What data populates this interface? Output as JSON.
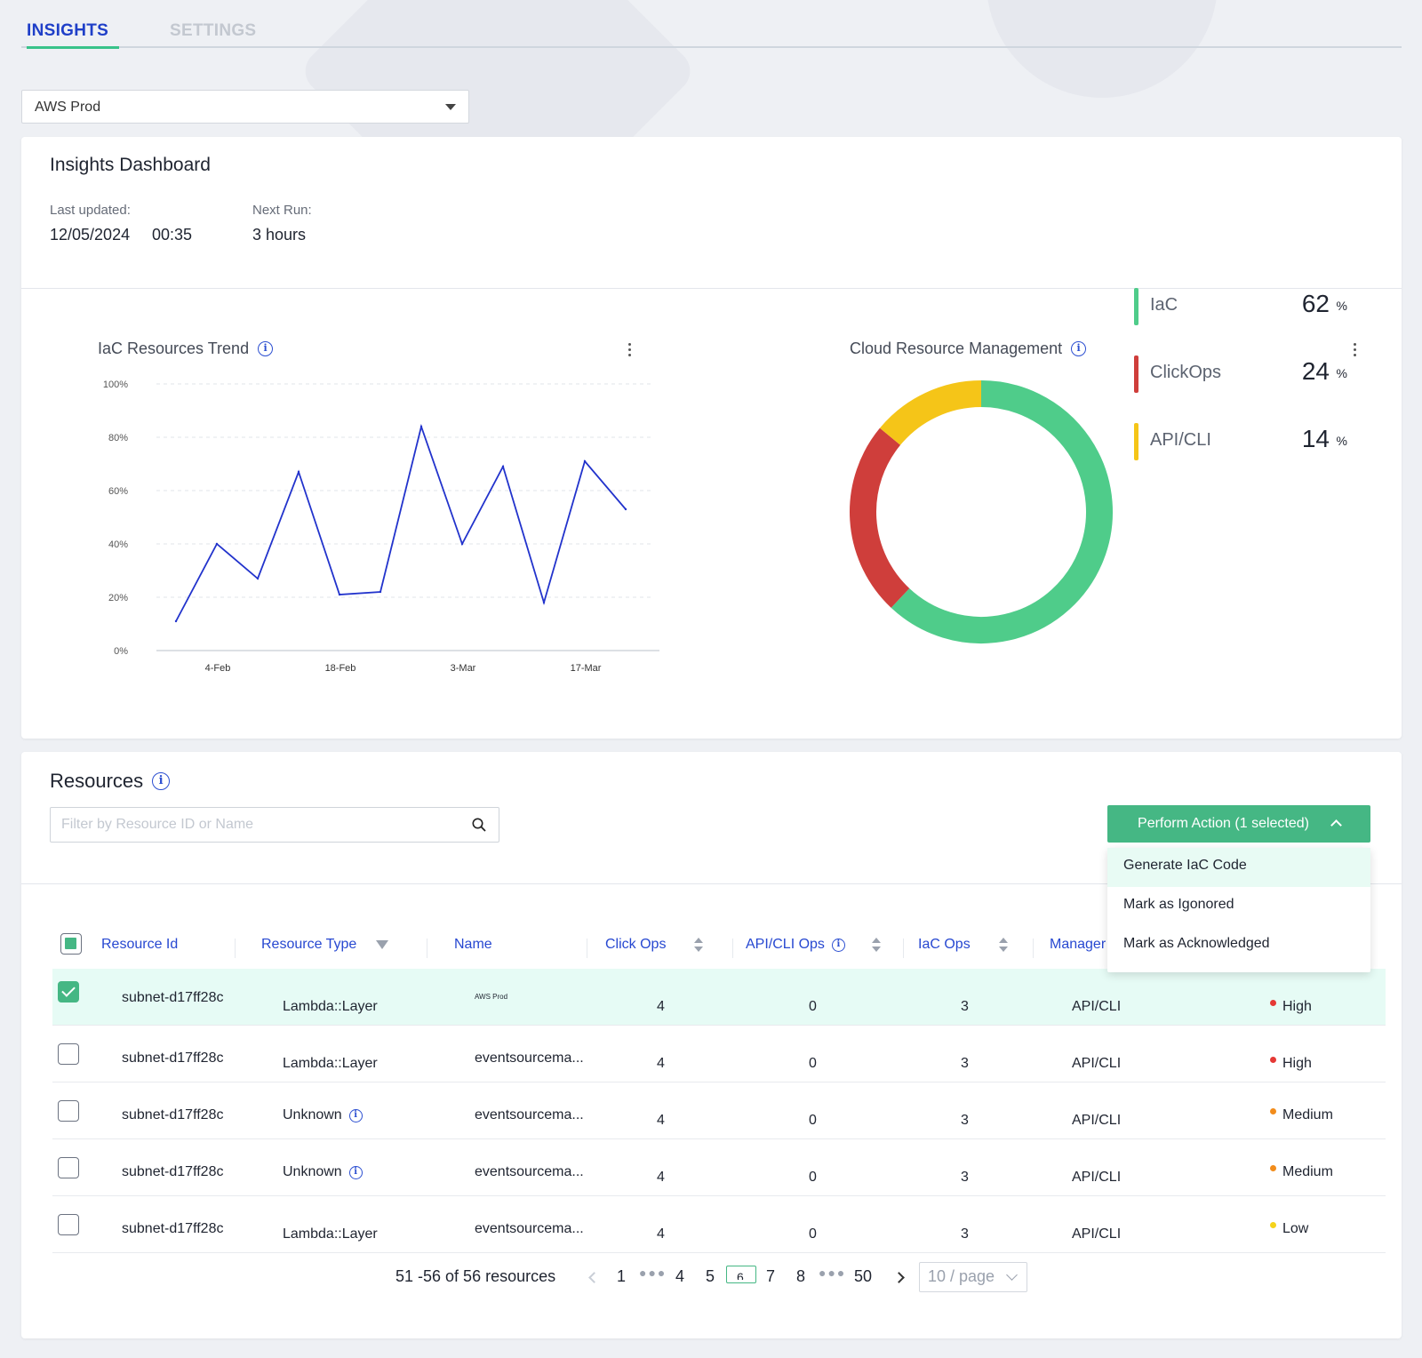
{
  "tabs": [
    {
      "label": "INSIGHTS",
      "active": true
    },
    {
      "label": "SETTINGS",
      "active": false
    }
  ],
  "account_select": {
    "value": "AWS Prod"
  },
  "dashboard": {
    "title": "Insights Dashboard",
    "last_updated_label": "Last updated:",
    "last_updated_date": "12/05/2024",
    "last_updated_time": "00:35",
    "next_run_label": "Next Run:",
    "next_run_value": "3 hours"
  },
  "trend_chart": {
    "title": "IaC Resources Trend"
  },
  "donut_chart": {
    "title": "Cloud Resource Management"
  },
  "chart_data": [
    {
      "type": "line",
      "title": "IaC Resources Trend",
      "x_tick_labels": [
        "4-Feb",
        "18-Feb",
        "3-Mar",
        "17-Mar"
      ],
      "y_tick_labels": [
        "100%",
        "80%",
        "60%",
        "40%",
        "20%",
        "0%"
      ],
      "ylim": [
        0,
        100
      ],
      "grid": true,
      "series": [
        {
          "values": [
            11,
            40,
            27,
            67,
            21,
            22,
            84,
            40,
            69,
            18,
            71,
            53
          ],
          "color": "#2233cc"
        }
      ]
    },
    {
      "type": "pie",
      "title": "Cloud Resource Management",
      "labels": [
        "IaC",
        "ClickOps",
        "API/CLI"
      ],
      "values": [
        62,
        24,
        14
      ],
      "colors": [
        "#4fcc8a",
        "#cf3e3b",
        "#f5c518"
      ],
      "unit": "%"
    }
  ],
  "resources": {
    "title": "Resources",
    "search_placeholder": "Filter by Resource ID or Name",
    "perform_action_label": "Perform Action (1 selected)",
    "menu_items": [
      "Generate IaC Code",
      "Mark as Igonored",
      "Mark as Acknowledged"
    ],
    "columns": {
      "resource_id": "Resource Id",
      "resource_type": "Resource Type",
      "name": "Name",
      "click_ops": "Click Ops",
      "api_cli_ops": "API/CLI Ops",
      "iac_ops": "IaC Ops",
      "managed": "Manager"
    },
    "rows": [
      {
        "id": "subnet-d17ff28c",
        "type": "Lambda::Layer",
        "name": "AWS Prod",
        "click_ops": "4",
        "api_ops": "0",
        "iac_ops": "3",
        "managed": "API/CLI",
        "severity": "High",
        "severity_color": "#e53935",
        "selected": true,
        "type_info": false
      },
      {
        "id": "subnet-d17ff28c",
        "type": "Lambda::Layer",
        "name": "eventsourcema...",
        "click_ops": "4",
        "api_ops": "0",
        "iac_ops": "3",
        "managed": "API/CLI",
        "severity": "High",
        "severity_color": "#e53935",
        "selected": false,
        "type_info": false
      },
      {
        "id": "subnet-d17ff28c",
        "type": "Unknown",
        "name": "eventsourcema...",
        "click_ops": "4",
        "api_ops": "0",
        "iac_ops": "3",
        "managed": "API/CLI",
        "severity": "Medium",
        "severity_color": "#f28c1b",
        "selected": false,
        "type_info": true
      },
      {
        "id": "subnet-d17ff28c",
        "type": "Unknown",
        "name": "eventsourcema...",
        "click_ops": "4",
        "api_ops": "0",
        "iac_ops": "3",
        "managed": "API/CLI",
        "severity": "Medium",
        "severity_color": "#f28c1b",
        "selected": false,
        "type_info": true
      },
      {
        "id": "subnet-d17ff28c",
        "type": "Lambda::Layer",
        "name": "eventsourcema...",
        "click_ops": "4",
        "api_ops": "0",
        "iac_ops": "3",
        "managed": "API/CLI",
        "severity": "Low",
        "severity_color": "#f5d31b",
        "selected": false,
        "type_info": false
      }
    ],
    "pagination": {
      "summary": "51 -56 of 56 resources",
      "pages": [
        "1",
        "4",
        "5",
        "7",
        "8",
        "50"
      ],
      "current_page_glyph": "6",
      "page_size": "10 / page"
    }
  },
  "colors": {
    "brand_blue": "#1f3fc8",
    "accent_green": "#45b784",
    "selected_row": "#e6fbf5"
  }
}
